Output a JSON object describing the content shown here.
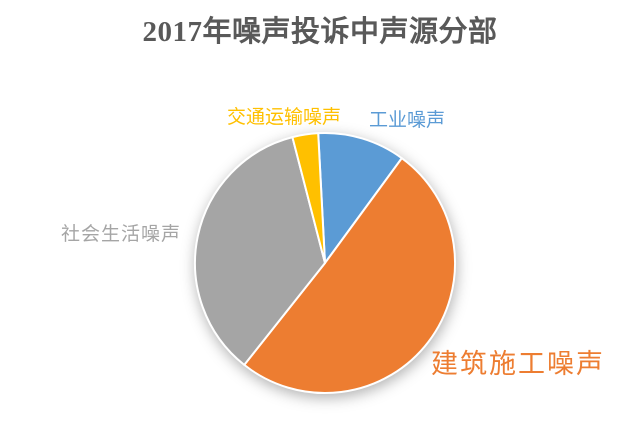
{
  "title": {
    "text": "2017年噪声投诉中声源分部",
    "color": "#595959"
  },
  "chart_data": {
    "type": "pie",
    "title": "2017年噪声投诉中声源分部",
    "rotation": "clockwise",
    "start_angle_deg": -3,
    "legend_position": "none",
    "data_labels_shown": false,
    "slices": [
      {
        "label": "工业噪声",
        "value": 10.9,
        "color": "#5B9BD5"
      },
      {
        "label": "建筑施工噪声",
        "value": 50.6,
        "color": "#ED7D31"
      },
      {
        "label": "社会生活噪声",
        "value": 35.3,
        "color": "#A5A5A5"
      },
      {
        "label": "交通运输噪声",
        "value": 3.2,
        "color": "#FFC000"
      }
    ],
    "separator_color": "#FFFFFF",
    "background_color": "#FFFFFF"
  }
}
